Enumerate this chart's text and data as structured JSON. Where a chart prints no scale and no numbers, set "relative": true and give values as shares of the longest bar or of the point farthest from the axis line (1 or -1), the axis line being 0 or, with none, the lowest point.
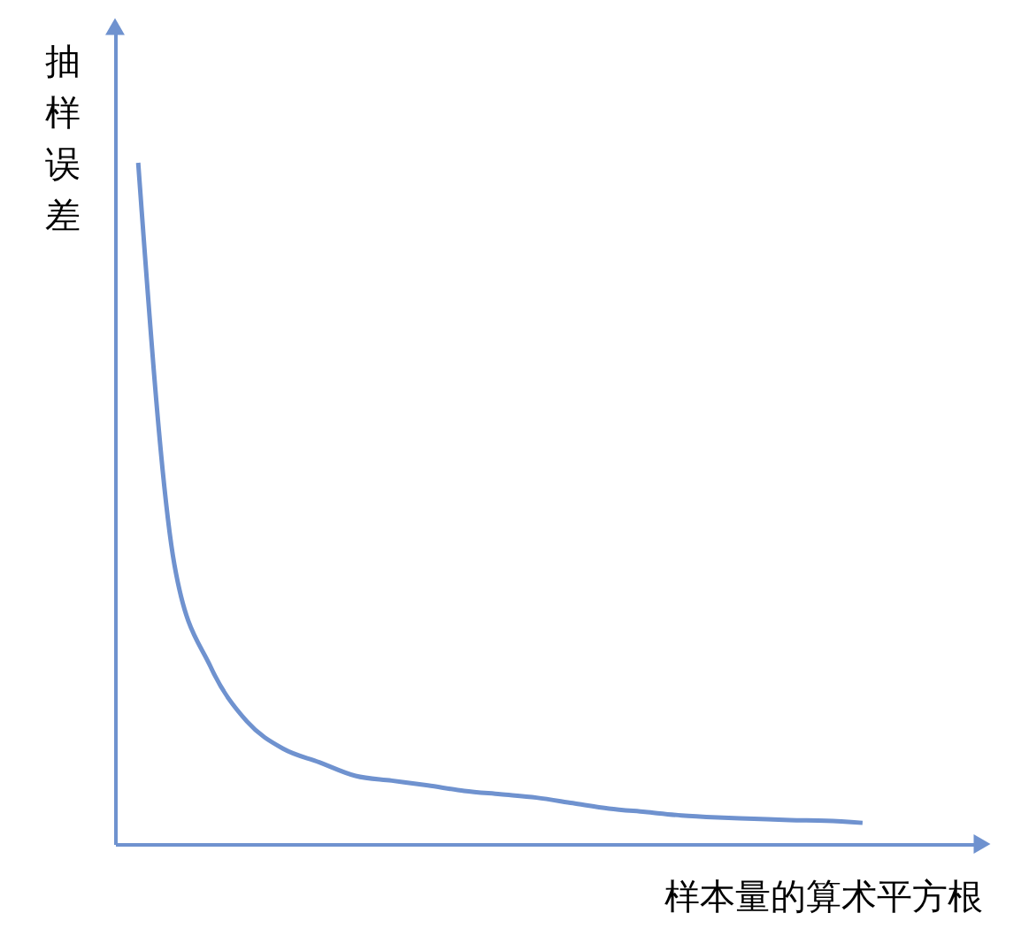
{
  "chart_data": {
    "type": "line",
    "relative": true,
    "xlabel": "样本量的算术平方根",
    "ylabel": "抽样误差",
    "categories": [
      null,
      null,
      null,
      null,
      null,
      null,
      null,
      null,
      null,
      null,
      null,
      null,
      null,
      null,
      null,
      null,
      null,
      null,
      null,
      null,
      null
    ],
    "series": [
      {
        "color": "#6f92cf",
        "values": [
          1.0,
          0.41,
          0.26,
          0.18,
          0.14,
          0.12,
          0.1,
          0.093,
          0.086,
          0.078,
          0.073,
          0.068,
          0.06,
          0.052,
          0.047,
          0.042,
          0.039,
          0.037,
          0.035,
          0.034,
          0.031
        ]
      }
    ],
    "grid": false,
    "marker": "none",
    "line_style": "solid",
    "tick_labels": false
  }
}
